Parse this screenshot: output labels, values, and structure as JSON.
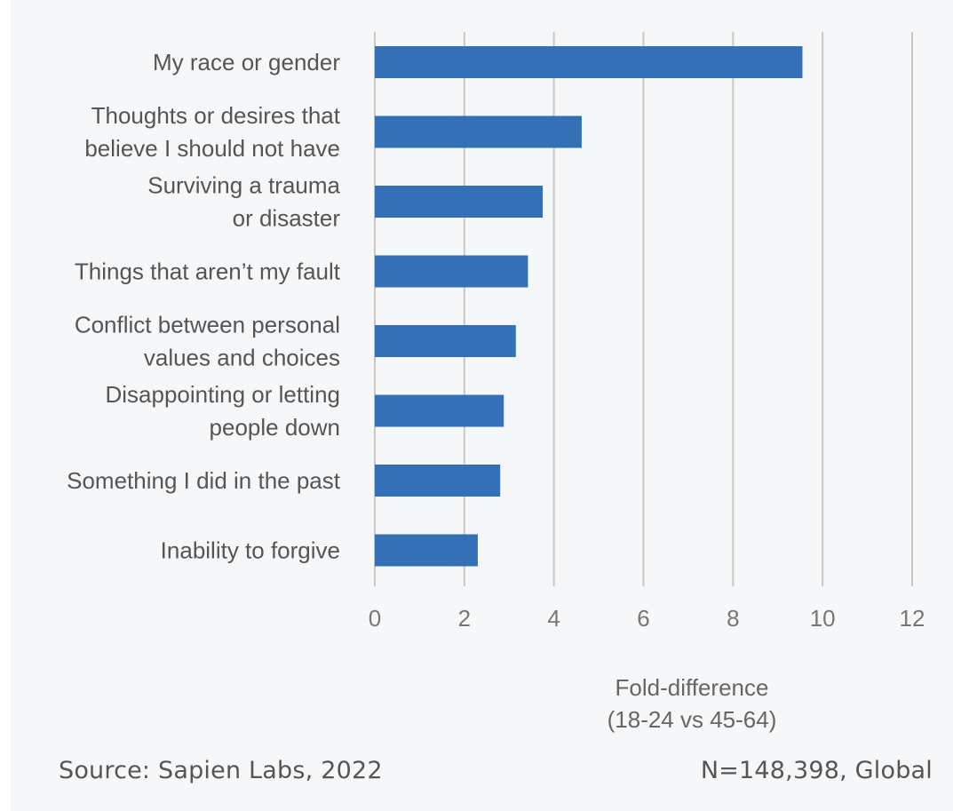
{
  "chart_data": {
    "type": "bar",
    "orientation": "horizontal",
    "categories": [
      [
        "My race or gender"
      ],
      [
        "Thoughts or desires that",
        "believe I should not have"
      ],
      [
        "Surviving a trauma",
        "or disaster"
      ],
      [
        "Things that aren’t my fault"
      ],
      [
        "Conflict between personal",
        "values and choices"
      ],
      [
        "Disappointing or letting",
        "people down"
      ],
      [
        "Something I did in the past"
      ],
      [
        "Inability to forgive"
      ]
    ],
    "values": [
      9.55,
      4.62,
      3.75,
      3.42,
      3.15,
      2.88,
      2.8,
      2.3
    ],
    "xlim": [
      0,
      12
    ],
    "xticks": [
      "0",
      "2",
      "4",
      "6",
      "8",
      "10",
      "12"
    ],
    "xlabel": [
      "Fold-difference",
      "(18-24 vs 45-64)"
    ],
    "grid": "vertical",
    "bar_color": "#3470b6",
    "grid_color": "#c8c8c8"
  },
  "footer": {
    "source": "Source: Sapien Labs, 2022",
    "sample": "N=148,398, Global"
  }
}
